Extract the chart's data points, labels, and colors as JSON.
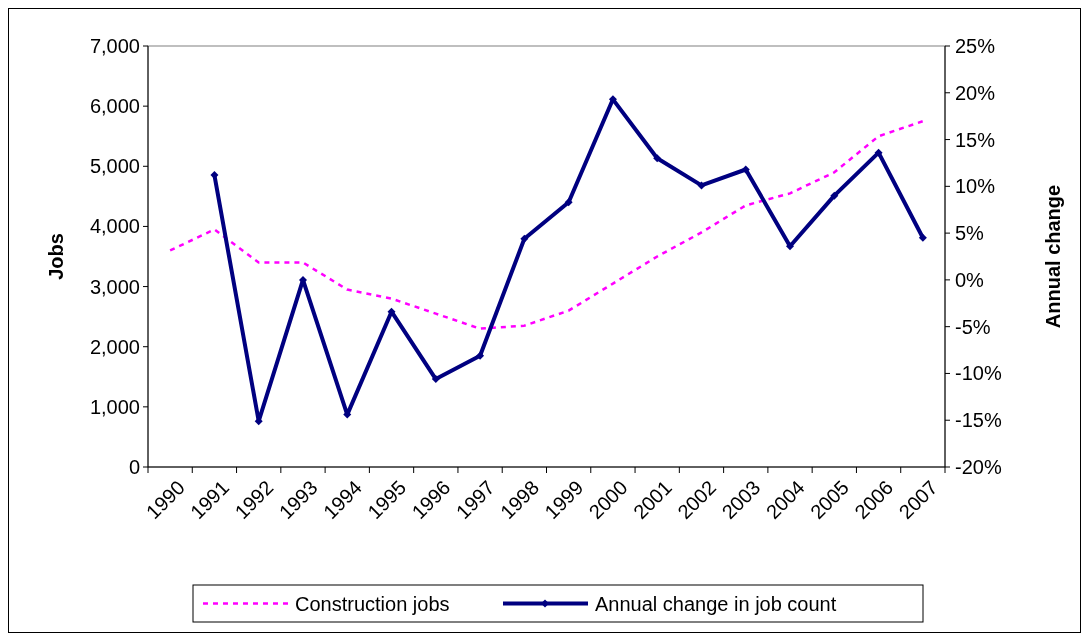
{
  "chart_data": {
    "type": "line",
    "xlabel": null,
    "ylabel": "Jobs",
    "y2label": "Annual change",
    "categories": [
      "1990",
      "1991",
      "1992",
      "1993",
      "1994",
      "1995",
      "1996",
      "1997",
      "1998",
      "1999",
      "2000",
      "2001",
      "2002",
      "2003",
      "2004",
      "2005",
      "2006",
      "2007"
    ],
    "series": [
      {
        "name": "Construction jobs",
        "color": "#ff00ff",
        "line_style": "dashed",
        "marker": "none",
        "values": [
          3600,
          3950,
          3400,
          3400,
          2950,
          2800,
          2550,
          2300,
          2350,
          2600,
          3050,
          3500,
          3900,
          4350,
          4550,
          4900,
          5500,
          5750
        ]
      },
      {
        "name": "Annual change in job count",
        "color": "#000080",
        "line_style": "solid",
        "marker": "diamond",
        "axis": "y2",
        "values": [
          null,
          11.2,
          -15.1,
          0,
          -14.4,
          -3.4,
          -10.6,
          -8.1,
          4.4,
          8.3,
          19.3,
          13.0,
          10.1,
          11.8,
          3.6,
          9.0,
          13.6,
          4.5
        ]
      }
    ],
    "ylim": [
      0,
      7000
    ],
    "yticks": [
      {
        "value": 0,
        "label": "0"
      },
      {
        "value": 1000,
        "label": "1,000"
      },
      {
        "value": 2000,
        "label": "2,000"
      },
      {
        "value": 3000,
        "label": "3,000"
      },
      {
        "value": 4000,
        "label": "4,000"
      },
      {
        "value": 5000,
        "label": "5,000"
      },
      {
        "value": 6000,
        "label": "6,000"
      },
      {
        "value": 7000,
        "label": "7,000"
      }
    ],
    "y2lim": [
      -20,
      25
    ],
    "y2ticks": [
      {
        "value": -20,
        "label": "-20%"
      },
      {
        "value": -15,
        "label": "-15%"
      },
      {
        "value": -10,
        "label": "-10%"
      },
      {
        "value": -5,
        "label": "-5%"
      },
      {
        "value": 0,
        "label": "0%"
      },
      {
        "value": 5,
        "label": "5%"
      },
      {
        "value": 10,
        "label": "10%"
      },
      {
        "value": 15,
        "label": "15%"
      },
      {
        "value": 20,
        "label": "20%"
      },
      {
        "value": 25,
        "label": "25%"
      }
    ],
    "grid": false,
    "legend": "bottom"
  }
}
